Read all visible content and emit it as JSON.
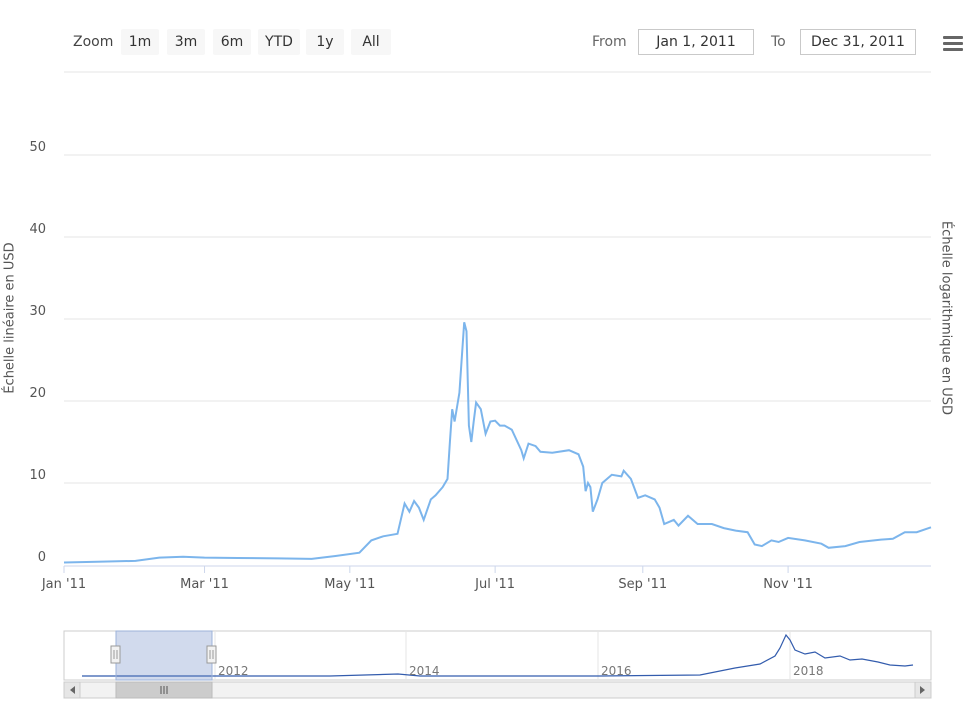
{
  "toolbar": {
    "zoom_label": "Zoom",
    "zoom_buttons": [
      "1m",
      "3m",
      "6m",
      "YTD",
      "1y",
      "All"
    ],
    "from_label": "From",
    "from_value": "Jan 1, 2011",
    "to_label": "To",
    "to_value": "Dec 31, 2011"
  },
  "menu_icon": "hamburger-menu-icon",
  "colors": {
    "line": "#7cb5ec",
    "navigator_fill": "rgba(102,133,194,0.3)",
    "grid": "#e6e6e6"
  },
  "chart_data": {
    "type": "line",
    "xlabel": "",
    "ylabel": "Échelle linéaire en USD",
    "ylabel_right": "Échelle logarithmique en USD",
    "xlim": [
      "2011-01-01",
      "2011-12-31"
    ],
    "ylim": [
      0,
      55
    ],
    "grid": true,
    "y_ticks": [
      "0",
      "10",
      "20",
      "30",
      "40",
      "50"
    ],
    "x_ticks": [
      {
        "date": "2011-01-01",
        "label": "Jan '11"
      },
      {
        "date": "2011-03-01",
        "label": "Mar '11"
      },
      {
        "date": "2011-05-01",
        "label": "May '11"
      },
      {
        "date": "2011-07-01",
        "label": "Jul '11"
      },
      {
        "date": "2011-09-01",
        "label": "Sep '11"
      },
      {
        "date": "2011-11-01",
        "label": "Nov '11"
      }
    ],
    "series": [
      {
        "points": [
          [
            "2011-01-01",
            0.3
          ],
          [
            "2011-01-15",
            0.4
          ],
          [
            "2011-01-31",
            0.5
          ],
          [
            "2011-02-10",
            0.9
          ],
          [
            "2011-02-20",
            1.0
          ],
          [
            "2011-03-01",
            0.9
          ],
          [
            "2011-03-15",
            0.85
          ],
          [
            "2011-04-01",
            0.8
          ],
          [
            "2011-04-15",
            0.75
          ],
          [
            "2011-04-25",
            1.1
          ],
          [
            "2011-05-05",
            1.5
          ],
          [
            "2011-05-10",
            3.0
          ],
          [
            "2011-05-15",
            3.5
          ],
          [
            "2011-05-21",
            3.8
          ],
          [
            "2011-05-24",
            7.5
          ],
          [
            "2011-05-26",
            6.5
          ],
          [
            "2011-05-28",
            7.8
          ],
          [
            "2011-05-30",
            7.0
          ],
          [
            "2011-06-01",
            5.5
          ],
          [
            "2011-06-04",
            8.0
          ],
          [
            "2011-06-06",
            8.5
          ],
          [
            "2011-06-09",
            9.5
          ],
          [
            "2011-06-11",
            10.5
          ],
          [
            "2011-06-12",
            15.0
          ],
          [
            "2011-06-13",
            19.0
          ],
          [
            "2011-06-14",
            17.5
          ],
          [
            "2011-06-16",
            21.0
          ],
          [
            "2011-06-18",
            29.6
          ],
          [
            "2011-06-19",
            28.5
          ],
          [
            "2011-06-20",
            17.0
          ],
          [
            "2011-06-21",
            15.0
          ],
          [
            "2011-06-22",
            17.5
          ],
          [
            "2011-06-23",
            19.8
          ],
          [
            "2011-06-25",
            19.0
          ],
          [
            "2011-06-27",
            16.0
          ],
          [
            "2011-06-29",
            17.5
          ],
          [
            "2011-07-01",
            17.6
          ],
          [
            "2011-07-03",
            17.0
          ],
          [
            "2011-07-05",
            17.0
          ],
          [
            "2011-07-08",
            16.5
          ],
          [
            "2011-07-12",
            14.0
          ],
          [
            "2011-07-13",
            13.0
          ],
          [
            "2011-07-15",
            14.8
          ],
          [
            "2011-07-18",
            14.5
          ],
          [
            "2011-07-20",
            13.8
          ],
          [
            "2011-07-25",
            13.7
          ],
          [
            "2011-08-01",
            14.0
          ],
          [
            "2011-08-05",
            13.5
          ],
          [
            "2011-08-07",
            12.0
          ],
          [
            "2011-08-08",
            9.0
          ],
          [
            "2011-08-09",
            10.0
          ],
          [
            "2011-08-10",
            9.5
          ],
          [
            "2011-08-11",
            6.5
          ],
          [
            "2011-08-13",
            8.0
          ],
          [
            "2011-08-15",
            10.0
          ],
          [
            "2011-08-19",
            11.0
          ],
          [
            "2011-08-23",
            10.8
          ],
          [
            "2011-08-24",
            11.5
          ],
          [
            "2011-08-27",
            10.5
          ],
          [
            "2011-08-30",
            8.2
          ],
          [
            "2011-09-02",
            8.5
          ],
          [
            "2011-09-06",
            8.0
          ],
          [
            "2011-09-08",
            7.0
          ],
          [
            "2011-09-10",
            5.0
          ],
          [
            "2011-09-14",
            5.5
          ],
          [
            "2011-09-16",
            4.8
          ],
          [
            "2011-09-20",
            6.0
          ],
          [
            "2011-09-24",
            5.0
          ],
          [
            "2011-09-30",
            5.0
          ],
          [
            "2011-10-05",
            4.5
          ],
          [
            "2011-10-10",
            4.2
          ],
          [
            "2011-10-15",
            4.0
          ],
          [
            "2011-10-18",
            2.5
          ],
          [
            "2011-10-21",
            2.3
          ],
          [
            "2011-10-25",
            3.0
          ],
          [
            "2011-10-28",
            2.8
          ],
          [
            "2011-11-01",
            3.3
          ],
          [
            "2011-11-08",
            3.0
          ],
          [
            "2011-11-15",
            2.6
          ],
          [
            "2011-11-18",
            2.1
          ],
          [
            "2011-11-25",
            2.3
          ],
          [
            "2011-12-01",
            2.8
          ],
          [
            "2011-12-10",
            3.1
          ],
          [
            "2011-12-15",
            3.2
          ],
          [
            "2011-12-20",
            4.0
          ],
          [
            "2011-12-25",
            4.0
          ],
          [
            "2011-12-31",
            4.6
          ]
        ]
      }
    ],
    "navigator": {
      "labels": [
        "2012",
        "2014",
        "2016",
        "2018"
      ],
      "selected_range": [
        "2011-01-01",
        "2011-12-31"
      ]
    }
  }
}
